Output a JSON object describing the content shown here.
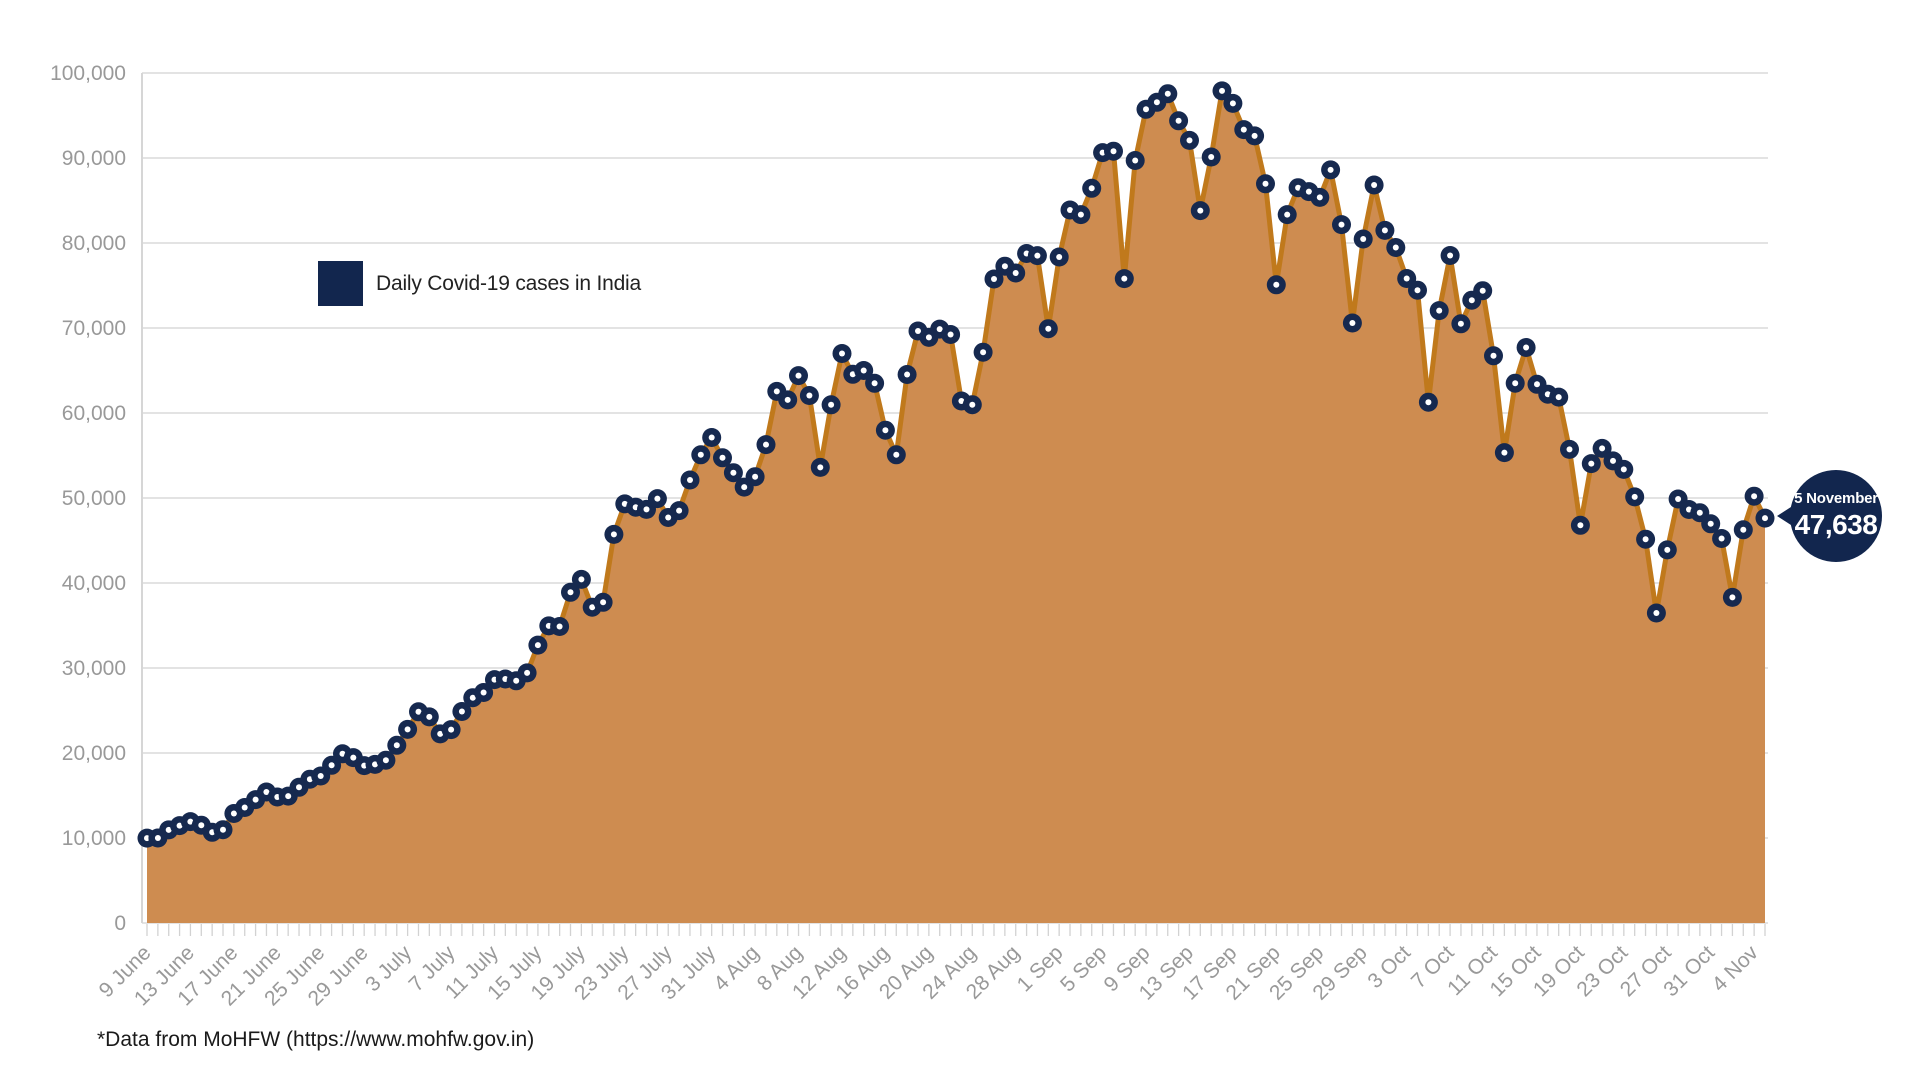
{
  "page": {
    "background": "#ffffff"
  },
  "colors": {
    "navy": "#12264E",
    "point_fill": "#16294F",
    "point_hole": "#ffffff",
    "line_orange": "#C0791C",
    "area_tan": "#CE8C50",
    "gridline": "#E3E3E3",
    "axis_line": "#D6D6D6",
    "tick": "#D2D2D2",
    "axis_text": "#999999",
    "body_text": "#1a1a1a"
  },
  "chart_data": {
    "type": "area",
    "legend_position": "upper-left-inside",
    "grid": "horizontal",
    "ylim": [
      0,
      100000
    ],
    "y_tick_step": 10000,
    "y_tick_labels": [
      "0",
      "10,000",
      "20,000",
      "30,000",
      "40,000",
      "50,000",
      "60,000",
      "70,000",
      "80,000",
      "90,000",
      "100,000"
    ],
    "x_tick_interval_days": 4,
    "x_tick_labels": [
      "9 June",
      "13 June",
      "17 June",
      "21 June",
      "25 June",
      "29 June",
      "3 July",
      "7 July",
      "11 July",
      "15 July",
      "19 July",
      "23 July",
      "27 July",
      "31 July",
      "4 Aug",
      "8 Aug",
      "12 Aug",
      "16 Aug",
      "20 Aug",
      "24 Aug",
      "28 Aug",
      "1 Sep",
      "5 Sep",
      "9 Sep",
      "13 Sep",
      "17 Sep",
      "21 Sep",
      "25 Sep",
      "29 Sep",
      "3 Oct",
      "7 Oct",
      "11 Oct",
      "15 Oct",
      "19 Oct",
      "23 Oct",
      "27 Oct",
      "31 Oct",
      "4 Nov"
    ],
    "series": [
      {
        "name": "Daily Covid-19 cases in India",
        "start_date": "9 June",
        "end_date": "5 November",
        "values": [
          9985,
          9996,
          10956,
          11458,
          11929,
          11503,
          10667,
          10974,
          12881,
          13586,
          14516,
          15413,
          14821,
          14933,
          15968,
          16922,
          17296,
          18552,
          19906,
          19459,
          18522,
          18653,
          19148,
          20903,
          22771,
          24850,
          24248,
          22252,
          22752,
          24879,
          26506,
          27114,
          28637,
          28701,
          28498,
          29429,
          32695,
          34956,
          34884,
          38902,
          40425,
          37148,
          37724,
          45720,
          49310,
          48916,
          48661,
          49931,
          47703,
          48513,
          52123,
          55078,
          57118,
          54735,
          52972,
          51282,
          52509,
          56282,
          62538,
          61537,
          64399,
          62064,
          53601,
          60963,
          66999,
          64553,
          65002,
          63490,
          57981,
          55079,
          64531,
          69652,
          68898,
          69874,
          69239,
          61408,
          60975,
          67151,
          75760,
          77266,
          76472,
          78761,
          78512,
          69921,
          78357,
          83883,
          83341,
          86432,
          90632,
          90802,
          75809,
          89706,
          95735,
          96551,
          97570,
          94372,
          92071,
          83809,
          90123,
          97894,
          96424,
          93337,
          92605,
          86961,
          75083,
          83347,
          86508,
          86052,
          85362,
          88600,
          82170,
          70589,
          80472,
          86821,
          81484,
          79476,
          75829,
          74442,
          61267,
          72049,
          78524,
          70496,
          73272,
          74383,
          66732,
          55342,
          63509,
          67708,
          63371,
          62212,
          61871,
          55722,
          46790,
          54044,
          55839,
          54366,
          53370,
          50129,
          45148,
          36470,
          43893,
          49881,
          48648,
          48268,
          46963,
          45231,
          38310,
          46253,
          50210,
          47638
        ]
      }
    ],
    "annotation": {
      "date_label": "5 November",
      "value": 47638,
      "value_label": "47,638"
    },
    "footnote": "*Data from MoHFW (https://www.mohfw.gov.in)"
  }
}
